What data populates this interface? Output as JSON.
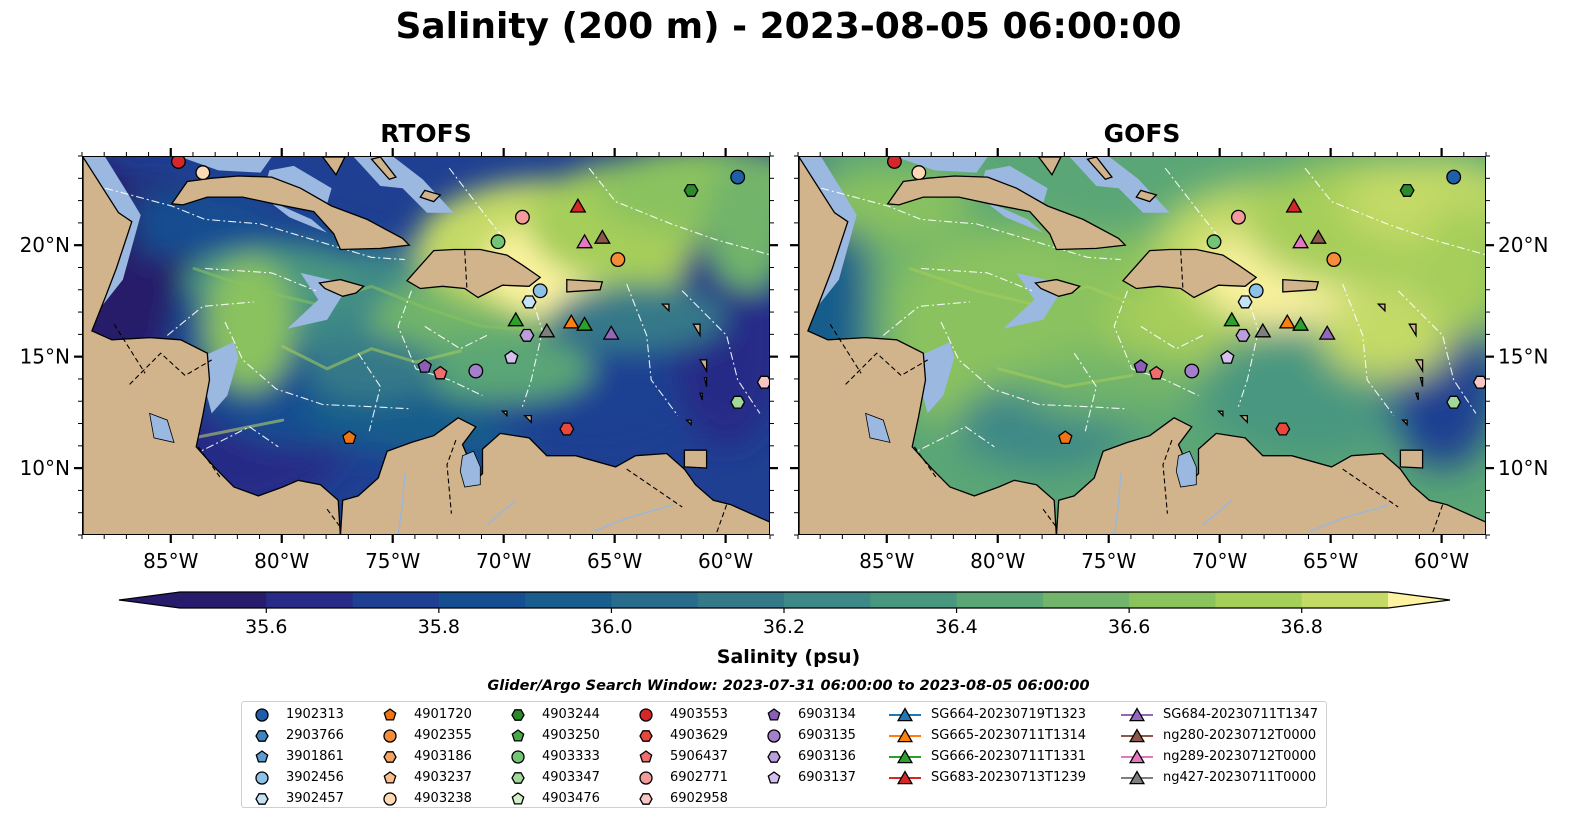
{
  "title": "Salinity (200 m) - 2023-08-05 06:00:00",
  "panels": [
    {
      "id": "rtofs",
      "title": "RTOFS"
    },
    {
      "id": "gofs",
      "title": "GOFS"
    }
  ],
  "map_extent": {
    "lon": [
      -89,
      -58
    ],
    "lat": [
      7,
      24
    ]
  },
  "axes": {
    "lon_ticks": [
      -85,
      -80,
      -75,
      -70,
      -65,
      -60
    ],
    "lon_labels": [
      "85°W",
      "80°W",
      "75°W",
      "70°W",
      "65°W",
      "60°W"
    ],
    "lat_ticks": [
      10,
      15,
      20
    ],
    "lat_labels": [
      "10°N",
      "15°N",
      "20°N"
    ]
  },
  "colors": {
    "land": "#d2b48c",
    "shallow": "#9ab8e0",
    "coast": "#000000"
  },
  "colorbar": {
    "label": "Salinity (psu)",
    "min": 35.5,
    "max": 36.9,
    "step": 0.1,
    "tick_values": [
      35.6,
      35.8,
      36.0,
      36.2,
      36.4,
      36.6,
      36.8
    ],
    "tick_labels": [
      "35.6",
      "35.8",
      "36.0",
      "36.2",
      "36.4",
      "36.6",
      "36.8"
    ],
    "colors": [
      "#271b6b",
      "#282a87",
      "#1f3f92",
      "#154e91",
      "#185d8c",
      "#286b8b",
      "#357989",
      "#3e8887",
      "#4a9780",
      "#5aa676",
      "#71b46a",
      "#8ac25e",
      "#a6ce5a",
      "#c4da66",
      "#fdf3a0"
    ],
    "extend": "both"
  },
  "legend": {
    "title": "Glider/Argo Search Window: 2023-07-31 06:00:00 to 2023-08-05 06:00:00",
    "columns": [
      [
        {
          "label": "1902313",
          "marker": "circle",
          "color": "#1f5fa8",
          "lon": -59.5,
          "lat": 23.1
        },
        {
          "label": "2903766",
          "marker": "hexagon",
          "color": "#3f84c1"
        },
        {
          "label": "3901861",
          "marker": "pentagon",
          "color": "#5b9bd1"
        },
        {
          "label": "3902456",
          "marker": "circle",
          "color": "#8cc2e6",
          "lon": -68.4,
          "lat": 18.0
        },
        {
          "label": "3902457",
          "marker": "hexagon",
          "color": "#c4e2f5",
          "lon": -68.9,
          "lat": 17.5
        }
      ],
      [
        {
          "label": "4901720",
          "marker": "pentagon",
          "color": "#f07412",
          "lon": -77.0,
          "lat": 11.4
        },
        {
          "label": "4902355",
          "marker": "circle",
          "color": "#f58c3a",
          "lon": -64.9,
          "lat": 19.4
        },
        {
          "label": "4903186",
          "marker": "hexagon",
          "color": "#f9a35f"
        },
        {
          "label": "4903237",
          "marker": "pentagon",
          "color": "#fbbd8a"
        },
        {
          "label": "4903238",
          "marker": "circle",
          "color": "#fdd9b5",
          "lon": -83.6,
          "lat": 23.3
        }
      ],
      [
        {
          "label": "4903244",
          "marker": "hexagon",
          "color": "#2c8a2c",
          "lon": -61.6,
          "lat": 22.5
        },
        {
          "label": "4903250",
          "marker": "pentagon",
          "color": "#46a846"
        },
        {
          "label": "4903333",
          "marker": "circle",
          "color": "#74c476",
          "lon": -70.3,
          "lat": 20.2
        },
        {
          "label": "4903347",
          "marker": "hexagon",
          "color": "#a1d99b",
          "lon": -59.5,
          "lat": 13.0
        },
        {
          "label": "4903476",
          "marker": "pentagon",
          "color": "#d1f0c6"
        }
      ],
      [
        {
          "label": "4903553",
          "marker": "circle",
          "color": "#d62728",
          "lon": -84.7,
          "lat": 23.8
        },
        {
          "label": "4903629",
          "marker": "hexagon",
          "color": "#e8483c",
          "lon": -67.2,
          "lat": 11.8
        },
        {
          "label": "5906437",
          "marker": "pentagon",
          "color": "#ef6d6d",
          "lon": -72.9,
          "lat": 14.3
        },
        {
          "label": "6902771",
          "marker": "circle",
          "color": "#f39a9a",
          "lon": -69.2,
          "lat": 21.3
        },
        {
          "label": "6902958",
          "marker": "hexagon",
          "color": "#f9c6c6",
          "lon": -58.3,
          "lat": 13.9
        }
      ],
      [
        {
          "label": "6903134",
          "marker": "pentagon",
          "color": "#8a5fb5",
          "lon": -73.6,
          "lat": 14.6
        },
        {
          "label": "6903135",
          "marker": "circle",
          "color": "#a47fcc",
          "lon": -71.3,
          "lat": 14.4
        },
        {
          "label": "6903136",
          "marker": "hexagon",
          "color": "#bb9fdd",
          "lon": -69.0,
          "lat": 16.0
        },
        {
          "label": "6903137",
          "marker": "pentagon",
          "color": "#d3c0ee",
          "lon": -69.7,
          "lat": 15.0
        }
      ],
      [
        {
          "label": "SG664-20230719T1323",
          "marker": "triangle",
          "color": "#1f77b4"
        },
        {
          "label": "SG665-20230711T1314",
          "marker": "triangle",
          "color": "#ff7f0e",
          "lon": -67.0,
          "lat": 16.6
        },
        {
          "label": "SG666-20230711T1331",
          "marker": "triangle",
          "color": "#2ca02c",
          "lon": -66.4,
          "lat": 16.5
        },
        {
          "label": "SG683-20230713T1239",
          "marker": "triangle",
          "color": "#d62728",
          "lon": -66.7,
          "lat": 21.8
        }
      ],
      [
        {
          "label": "SG684-20230711T1347",
          "marker": "triangle",
          "color": "#9467bd",
          "lon": -65.2,
          "lat": 16.1
        },
        {
          "label": "ng280-20230712T0000",
          "marker": "triangle",
          "color": "#8c564b",
          "lon": -65.6,
          "lat": 20.4
        },
        {
          "label": "ng289-20230712T0000",
          "marker": "triangle",
          "color": "#e377c2",
          "lon": -66.4,
          "lat": 20.2
        },
        {
          "label": "ng427-20230711T0000",
          "marker": "triangle",
          "color": "#7f7f7f",
          "lon": -68.1,
          "lat": 16.2
        }
      ]
    ]
  },
  "extra_markers": [
    {
      "marker": "triangle",
      "color": "#2ca02c",
      "lon": -69.5,
      "lat": 16.7
    }
  ]
}
